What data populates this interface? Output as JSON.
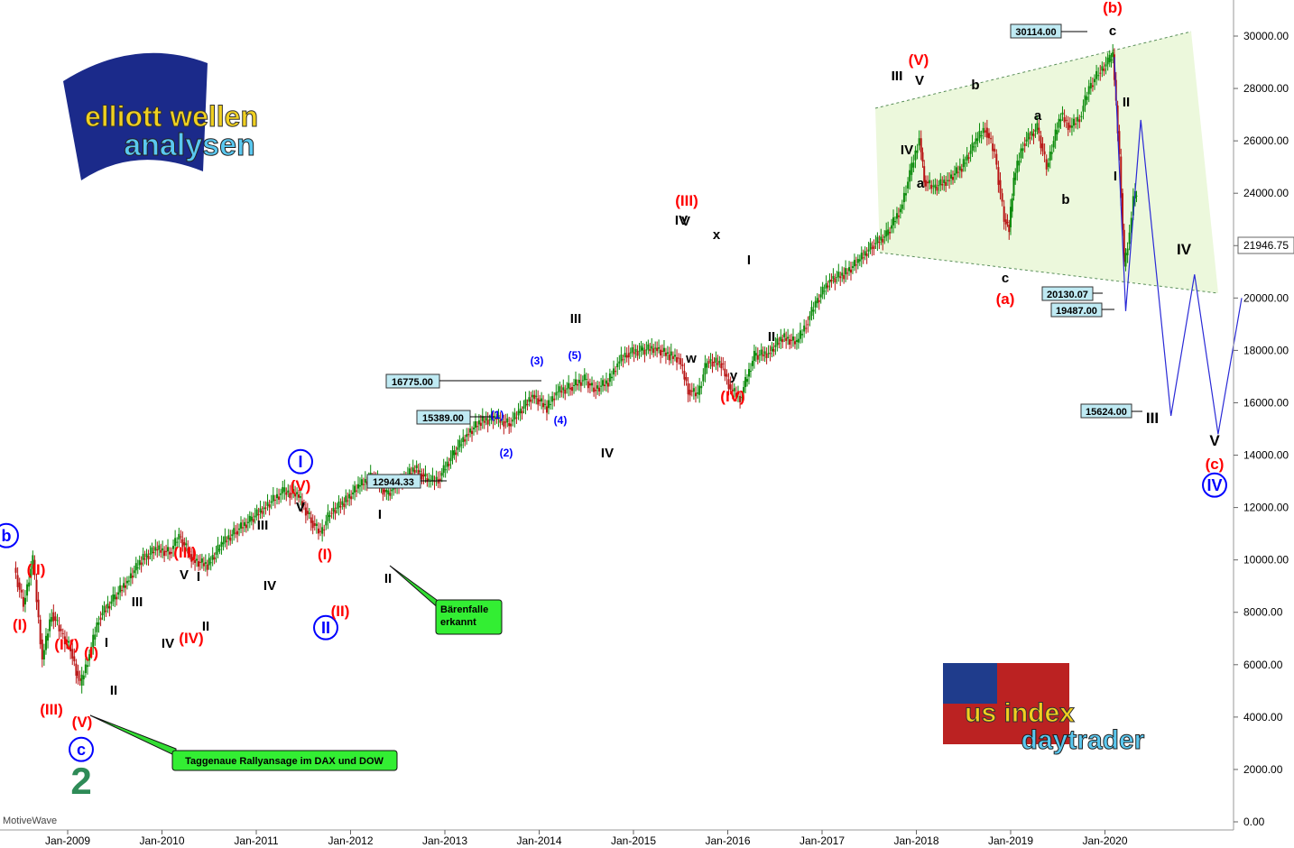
{
  "chart_data": {
    "type": "candlestick",
    "y_axis": {
      "min": 0,
      "max": 31000,
      "ticks": [
        "0.00",
        "2000.00",
        "4000.00",
        "6000.00",
        "8000.00",
        "10000.00",
        "12000.00",
        "14000.00",
        "16000.00",
        "18000.00",
        "20000.00",
        "22000.00",
        "24000.00",
        "26000.00",
        "28000.00",
        "30000.00"
      ],
      "position": "right"
    },
    "x_axis": {
      "ticks": [
        "Jan-2009",
        "Jan-2010",
        "Jan-2011",
        "Jan-2012",
        "Jan-2013",
        "Jan-2014",
        "Jan-2015",
        "Jan-2016",
        "Jan-2017",
        "Jan-2018",
        "Jan-2019",
        "Jan-2020"
      ]
    },
    "series": [
      {
        "values": [
          [
            2008.45,
            9700
          ],
          [
            2008.55,
            8300
          ],
          [
            2008.65,
            10000
          ],
          [
            2008.75,
            6200
          ],
          [
            2008.85,
            8000
          ],
          [
            2008.95,
            7200
          ],
          [
            2009.05,
            6600
          ],
          [
            2009.15,
            5200
          ],
          [
            2009.25,
            6400
          ],
          [
            2009.35,
            7800
          ],
          [
            2009.5,
            8500
          ],
          [
            2009.65,
            9200
          ],
          [
            2009.8,
            10000
          ],
          [
            2009.95,
            10400
          ],
          [
            2010.1,
            10300
          ],
          [
            2010.2,
            10900
          ],
          [
            2010.35,
            10000
          ],
          [
            2010.5,
            9800
          ],
          [
            2010.65,
            10600
          ],
          [
            2010.8,
            11100
          ],
          [
            2010.95,
            11500
          ],
          [
            2011.1,
            12000
          ],
          [
            2011.3,
            12600
          ],
          [
            2011.45,
            12500
          ],
          [
            2011.6,
            11500
          ],
          [
            2011.7,
            11000
          ],
          [
            2011.8,
            11800
          ],
          [
            2011.95,
            12200
          ],
          [
            2012.1,
            12800
          ],
          [
            2012.25,
            13200
          ],
          [
            2012.4,
            12500
          ],
          [
            2012.55,
            13000
          ],
          [
            2012.7,
            13500
          ],
          [
            2012.85,
            13000
          ],
          [
            2012.95,
            13100
          ],
          [
            2013.1,
            14000
          ],
          [
            2013.25,
            14800
          ],
          [
            2013.4,
            15300
          ],
          [
            2013.55,
            15400
          ],
          [
            2013.7,
            15200
          ],
          [
            2013.8,
            15600
          ],
          [
            2013.95,
            16300
          ],
          [
            2014.1,
            15800
          ],
          [
            2014.2,
            16400
          ],
          [
            2014.35,
            16600
          ],
          [
            2014.5,
            16900
          ],
          [
            2014.6,
            16500
          ],
          [
            2014.75,
            16800
          ],
          [
            2014.85,
            17500
          ],
          [
            2014.95,
            17900
          ],
          [
            2015.1,
            18000
          ],
          [
            2015.25,
            18100
          ],
          [
            2015.4,
            17800
          ],
          [
            2015.5,
            17700
          ],
          [
            2015.6,
            16500
          ],
          [
            2015.7,
            16300
          ],
          [
            2015.8,
            17600
          ],
          [
            2015.95,
            17500
          ],
          [
            2016.05,
            16500
          ],
          [
            2016.15,
            16200
          ],
          [
            2016.3,
            17800
          ],
          [
            2016.45,
            17900
          ],
          [
            2016.6,
            18500
          ],
          [
            2016.75,
            18300
          ],
          [
            2016.85,
            19000
          ],
          [
            2016.95,
            19800
          ],
          [
            2017.1,
            20700
          ],
          [
            2017.25,
            20900
          ],
          [
            2017.4,
            21400
          ],
          [
            2017.55,
            22000
          ],
          [
            2017.7,
            22400
          ],
          [
            2017.85,
            23400
          ],
          [
            2017.95,
            24700
          ],
          [
            2018.05,
            26100
          ],
          [
            2018.1,
            24500
          ],
          [
            2018.2,
            24200
          ],
          [
            2018.35,
            24500
          ],
          [
            2018.5,
            25000
          ],
          [
            2018.65,
            26000
          ],
          [
            2018.75,
            26500
          ],
          [
            2018.85,
            25500
          ],
          [
            2018.95,
            23000
          ],
          [
            2019.0,
            22700
          ],
          [
            2019.05,
            24500
          ],
          [
            2019.15,
            25900
          ],
          [
            2019.3,
            26500
          ],
          [
            2019.4,
            25000
          ],
          [
            2019.55,
            27000
          ],
          [
            2019.65,
            26500
          ],
          [
            2019.75,
            26900
          ],
          [
            2019.85,
            28000
          ],
          [
            2019.95,
            28600
          ],
          [
            2020.05,
            29000
          ],
          [
            2020.1,
            29300
          ],
          [
            2020.17,
            25400
          ],
          [
            2020.22,
            21200
          ],
          [
            2020.28,
            22500
          ],
          [
            2020.32,
            23800
          ],
          [
            2020.35,
            24000
          ]
        ]
      }
    ],
    "projection": {
      "x": [
        2020.1,
        2020.22,
        2020.38,
        2020.7,
        2020.95,
        2021.2,
        2021.45
      ],
      "y": [
        29200,
        19500,
        26800,
        15500,
        20900,
        14800,
        20000
      ]
    },
    "price_labels": [
      "30114.00",
      "20130.07",
      "19487.00",
      "15624.00",
      "16775.00",
      "15389.00",
      "12944.33",
      "21946.75"
    ],
    "annotations": {
      "text_boxes": [
        "Taggenaue Rallyansage im DAX und DOW",
        "Bärenfalle erkannt"
      ],
      "waves": [
        "b",
        "(II)",
        "(I)",
        "(IV)",
        "(I)",
        "(III)",
        "II",
        "(V)",
        "c",
        "2",
        "I",
        "II",
        "III",
        "IV",
        "V",
        "(III)",
        "V",
        "I",
        "II",
        "IV",
        "(IV)",
        "III",
        "V",
        "(V)",
        "I",
        "(I)",
        "(II)",
        "II",
        "IV",
        "I",
        "III",
        "IV",
        "(1)",
        "(2)",
        "(3)",
        "(4)",
        "(5)",
        "III",
        "V",
        "x",
        "w",
        "(III)",
        "y",
        "(IV)",
        "I",
        "II",
        "III",
        "V",
        "IV",
        "(V)",
        "III",
        "b",
        "a",
        "c",
        "(a)",
        "a",
        "b",
        "(b)",
        "c",
        "II",
        "I",
        "IV",
        "III",
        "V",
        "(c)",
        "IV"
      ]
    },
    "watermark": "MotiveWave",
    "logos": [
      "elliott wellen analysen",
      "us index daytrader"
    ]
  }
}
